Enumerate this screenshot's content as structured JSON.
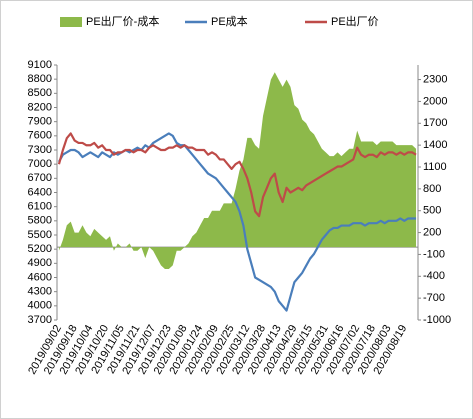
{
  "chart_data": {
    "type": "line",
    "combo": true,
    "categories": [
      "2019/09/02",
      null,
      null,
      null,
      "2019/09/18",
      null,
      null,
      null,
      "2019/10/04",
      null,
      null,
      null,
      "2019/10/20",
      null,
      null,
      null,
      "2019/11/05",
      null,
      null,
      null,
      "2019/11/21",
      null,
      null,
      null,
      "2019/12/07",
      null,
      null,
      null,
      "2019/12/23",
      null,
      null,
      null,
      "2020/01/08",
      null,
      null,
      null,
      "2020/01/24",
      null,
      null,
      null,
      "2020/02/09",
      null,
      null,
      null,
      "2020/02/25",
      null,
      null,
      null,
      "2020/03/12",
      null,
      null,
      null,
      "2020/03/28",
      null,
      null,
      null,
      "2020/04/13",
      null,
      null,
      null,
      "2020/04/29",
      null,
      null,
      null,
      "2020/05/15",
      null,
      null,
      null,
      "2020/05/31",
      null,
      null,
      null,
      "2020/06/16",
      null,
      null,
      null,
      "2020/07/02",
      null,
      null,
      null,
      "2020/07/18",
      null,
      null,
      null,
      "2020/08/03",
      null,
      null,
      null,
      "2020/08/19",
      null,
      null,
      null
    ],
    "series": [
      {
        "name": "PE出厂价-成本",
        "type": "area",
        "axis": "y2",
        "color": "#8db94a",
        "values": [
          -50,
          100,
          300,
          350,
          200,
          200,
          300,
          200,
          150,
          250,
          200,
          150,
          100,
          150,
          -50,
          50,
          0,
          0,
          50,
          -50,
          -50,
          0,
          -150,
          0,
          -50,
          -150,
          -250,
          -300,
          -300,
          -250,
          -50,
          -50,
          0,
          50,
          150,
          200,
          300,
          400,
          400,
          500,
          500,
          500,
          600,
          600,
          600,
          800,
          1050,
          1200,
          1500,
          1500,
          1400,
          1350,
          1800,
          2050,
          2300,
          2400,
          2300,
          2200,
          2300,
          2200,
          1950,
          1900,
          1750,
          1700,
          1600,
          1550,
          1450,
          1350,
          1300,
          1250,
          1250,
          1300,
          1250,
          1300,
          1350,
          1350,
          1600,
          1450,
          1450,
          1450,
          1450,
          1400,
          1450,
          1450,
          1450,
          1450,
          1400,
          1400,
          1400,
          1400,
          1400,
          1350
        ]
      },
      {
        "name": "PE成本",
        "type": "line",
        "color": "#4a7ebb",
        "values": [
          7050,
          7200,
          7250,
          7300,
          7300,
          7250,
          7150,
          7200,
          7250,
          7200,
          7150,
          7250,
          7200,
          7150,
          7250,
          7200,
          7250,
          7300,
          7250,
          7300,
          7350,
          7300,
          7400,
          7350,
          7450,
          7500,
          7550,
          7600,
          7650,
          7600,
          7450,
          7400,
          7400,
          7300,
          7200,
          7100,
          7000,
          6900,
          6800,
          6750,
          6700,
          6600,
          6500,
          6400,
          6300,
          6200,
          6000,
          5700,
          5200,
          4900,
          4600,
          4550,
          4500,
          4450,
          4400,
          4300,
          4100,
          4000,
          3900,
          4200,
          4500,
          4600,
          4700,
          4850,
          5000,
          5100,
          5250,
          5400,
          5500,
          5600,
          5650,
          5650,
          5700,
          5700,
          5700,
          5750,
          5750,
          5750,
          5700,
          5750,
          5750,
          5750,
          5800,
          5750,
          5800,
          5800,
          5800,
          5850,
          5800,
          5850,
          5850,
          5850
        ]
      },
      {
        "name": "PE出厂价",
        "type": "line",
        "color": "#be4b48",
        "values": [
          7000,
          7300,
          7550,
          7650,
          7500,
          7450,
          7450,
          7400,
          7400,
          7450,
          7350,
          7400,
          7300,
          7300,
          7200,
          7250,
          7250,
          7300,
          7300,
          7250,
          7300,
          7300,
          7250,
          7350,
          7400,
          7350,
          7300,
          7300,
          7350,
          7350,
          7400,
          7350,
          7400,
          7350,
          7350,
          7300,
          7300,
          7300,
          7200,
          7250,
          7200,
          7100,
          7100,
          7000,
          6900,
          7000,
          7050,
          6900,
          6700,
          6400,
          6000,
          5900,
          6300,
          6500,
          6700,
          6800,
          6400,
          6200,
          6500,
          6400,
          6450,
          6500,
          6450,
          6550,
          6600,
          6650,
          6700,
          6750,
          6800,
          6850,
          6900,
          6950,
          6950,
          7000,
          7050,
          7100,
          7350,
          7200,
          7150,
          7200,
          7200,
          7150,
          7250,
          7200,
          7250,
          7250,
          7200,
          7250,
          7200,
          7250,
          7250,
          7200
        ]
      }
    ],
    "ylim": [
      3700,
      9100
    ],
    "yticks": [
      3700,
      4000,
      4300,
      4600,
      4900,
      5200,
      5500,
      5800,
      6100,
      6400,
      6700,
      7000,
      7300,
      7600,
      7900,
      8200,
      8500,
      8800,
      9100
    ],
    "y2lim": [
      -1000,
      2500
    ],
    "y2ticks": [
      -1000,
      -700,
      -400,
      -100,
      200,
      500,
      800,
      1100,
      1400,
      1700,
      2000,
      2300
    ],
    "legend": "top"
  }
}
